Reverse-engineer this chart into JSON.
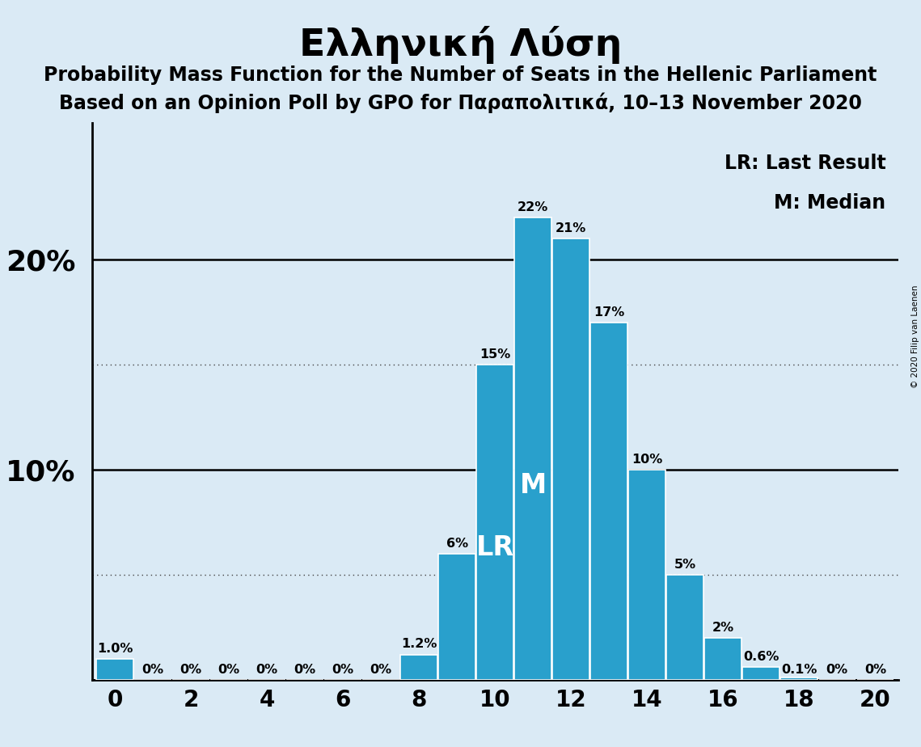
{
  "title": "Ελληνική Λύση",
  "subtitle1": "Probability Mass Function for the Number of Seats in the Hellenic Parliament",
  "subtitle2": "Based on an Opinion Poll by GPO for Παραπολιτικά, 10–13 November 2020",
  "background_color": "#daeaf5",
  "bar_color": "#29a0cc",
  "bar_edge_color": "#ffffff",
  "seats": [
    0,
    1,
    2,
    3,
    4,
    5,
    6,
    7,
    8,
    9,
    10,
    11,
    12,
    13,
    14,
    15,
    16,
    17,
    18,
    19,
    20
  ],
  "probabilities": [
    0.01,
    0.0,
    0.0,
    0.0,
    0.0,
    0.0,
    0.0,
    0.0,
    0.012,
    0.06,
    0.15,
    0.22,
    0.21,
    0.17,
    0.1,
    0.05,
    0.02,
    0.006,
    0.001,
    0.0,
    0.0
  ],
  "labels": [
    "1.0%",
    "0%",
    "0%",
    "0%",
    "0%",
    "0%",
    "0%",
    "0%",
    "1.2%",
    "6%",
    "15%",
    "22%",
    "21%",
    "17%",
    "10%",
    "5%",
    "2%",
    "0.6%",
    "0.1%",
    "0%",
    "0%"
  ],
  "lr_seat": 10,
  "median_seat": 11,
  "lr_label": "LR",
  "median_label": "M",
  "legend_lr": "LR: Last Result",
  "legend_m": "M: Median",
  "ytick_solid": [
    0.0,
    0.1,
    0.2
  ],
  "ytick_dotted": [
    0.05,
    0.15
  ],
  "xlim": [
    -0.6,
    20.6
  ],
  "ylim": [
    0,
    0.265
  ],
  "copyright": "© 2020 Filip van Laenen",
  "title_fontsize": 34,
  "subtitle_fontsize": 17,
  "label_fontsize": 11.5,
  "axis_label_fontsize": 20,
  "legend_fontsize": 17,
  "inbar_fontsize": 24,
  "ytick_label_fontsize": 26
}
